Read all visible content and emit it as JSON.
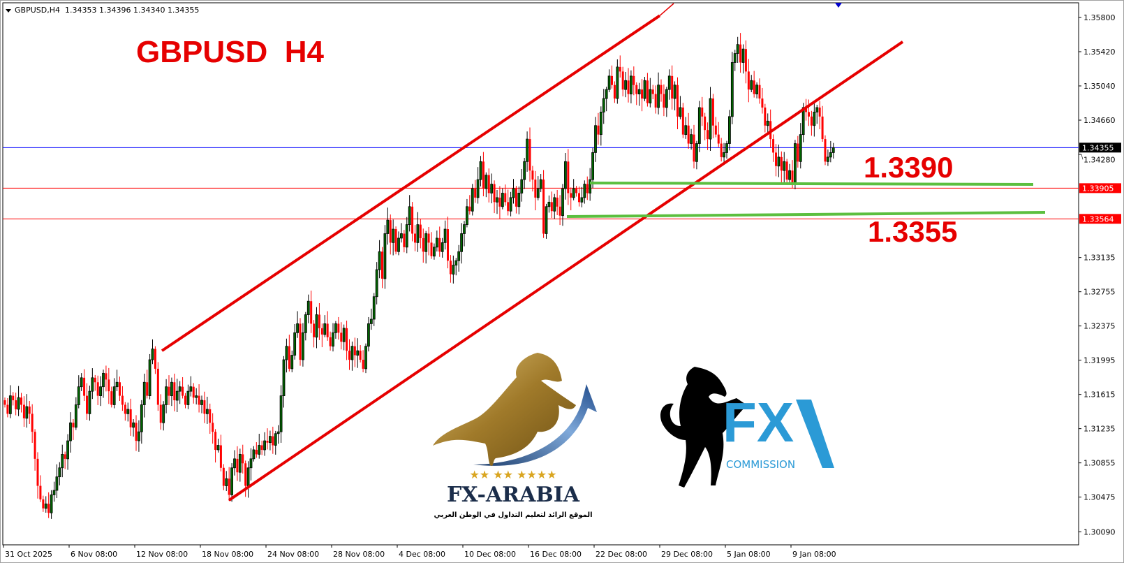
{
  "header": {
    "symbol": "GBPUSD,H4",
    "ohlc": "1.34353 1.34396 1.34340 1.34355"
  },
  "annotations": {
    "title": "GBPUSD  H4",
    "level_1_label": "1.3390",
    "level_2_label": "1.3355"
  },
  "logos": {
    "fx_arabia": {
      "name": "FX-ARABIA",
      "tagline": "الموقع الرائد لتعليم التداول في الوطن العربي"
    },
    "fx_commission": {
      "name": "FX",
      "sub": "COMMISSION"
    }
  },
  "colors": {
    "bull_body": "#006400",
    "bear_body": "#ff0000",
    "current_price_line": "#0000ff",
    "level_line": "#ff0000",
    "support_line": "#5cbf3f",
    "channel_line": "#e60000",
    "title": "#e60000"
  },
  "chart_data": {
    "type": "candlestick",
    "timeframe": "H4",
    "symbol": "GBPUSD",
    "ylim": [
      1.2995,
      1.36
    ],
    "y_ticks": [
      "1.35800",
      "1.35420",
      "1.35040",
      "1.34660",
      "1.34280",
      "1.33135",
      "1.32755",
      "1.32375",
      "1.31995",
      "1.31615",
      "1.31235",
      "1.30855",
      "1.30475",
      "1.30090"
    ],
    "x_ticks": [
      "31 Oct 2025",
      "6 Nov 08:00",
      "12 Nov 08:00",
      "18 Nov 08:00",
      "24 Nov 08:00",
      "28 Nov 08:00",
      "4 Dec 08:00",
      "10 Dec 08:00",
      "16 Dec 08:00",
      "22 Dec 08:00",
      "29 Dec 08:00",
      "5 Jan 08:00",
      "9 Jan 08:00"
    ],
    "closes": [
      1.315,
      1.314,
      1.316,
      1.3155,
      1.3145,
      1.3158,
      1.315,
      1.3135,
      1.3148,
      1.314,
      1.312,
      1.309,
      1.306,
      1.3045,
      1.3035,
      1.304,
      1.303,
      1.305,
      1.3055,
      1.307,
      1.308,
      1.3095,
      1.309,
      1.311,
      1.313,
      1.3125,
      1.315,
      1.317,
      1.318,
      1.316,
      1.314,
      1.3165,
      1.318,
      1.3175,
      1.316,
      1.317,
      1.3185,
      1.3178,
      1.3165,
      1.315,
      1.317,
      1.3175,
      1.316,
      1.315,
      1.314,
      1.3145,
      1.3125,
      1.313,
      1.311,
      1.312,
      1.315,
      1.3175,
      1.316,
      1.32,
      1.3212,
      1.319,
      1.315,
      1.313,
      1.315,
      1.317,
      1.316,
      1.3175,
      1.3155,
      1.3165,
      1.317,
      1.316,
      1.315,
      1.3165,
      1.317,
      1.3158,
      1.316,
      1.315,
      1.3155,
      1.314,
      1.3145,
      1.313,
      1.312,
      1.31,
      1.3105,
      1.308,
      1.306,
      1.3068,
      1.305,
      1.308,
      1.309,
      1.3075,
      1.3095,
      1.3085,
      1.306,
      1.308,
      1.309,
      1.31,
      1.3095,
      1.3105,
      1.31,
      1.311,
      1.3108,
      1.3115,
      1.3105,
      1.3118,
      1.312,
      1.316,
      1.32,
      1.3215,
      1.319,
      1.3205,
      1.323,
      1.324,
      1.32,
      1.323,
      1.325,
      1.3265,
      1.324,
      1.3225,
      1.325,
      1.3235,
      1.3228,
      1.324,
      1.3225,
      1.3215,
      1.323,
      1.324,
      1.323,
      1.322,
      1.3235,
      1.321,
      1.32,
      1.3215,
      1.3205,
      1.321,
      1.32,
      1.319,
      1.3215,
      1.324,
      1.3245,
      1.327,
      1.33,
      1.332,
      1.329,
      1.334,
      1.3355,
      1.333,
      1.3345,
      1.332,
      1.3335,
      1.334,
      1.3325,
      1.335,
      1.337,
      1.334,
      1.333,
      1.335,
      1.3335,
      1.332,
      1.334,
      1.333,
      1.3315,
      1.3325,
      1.3335,
      1.332,
      1.333,
      1.3345,
      1.331,
      1.3295,
      1.3305,
      1.331,
      1.332,
      1.334,
      1.335,
      1.337,
      1.3365,
      1.339,
      1.338,
      1.34,
      1.342,
      1.339,
      1.3405,
      1.3385,
      1.3395,
      1.3375,
      1.338,
      1.337,
      1.3385,
      1.3375,
      1.3365,
      1.338,
      1.339,
      1.337,
      1.3385,
      1.34,
      1.342,
      1.3445,
      1.341,
      1.34,
      1.338,
      1.339,
      1.34,
      1.334,
      1.337,
      1.3375,
      1.3365,
      1.338,
      1.337,
      1.336,
      1.339,
      1.342,
      1.3385,
      1.338,
      1.339,
      1.3385,
      1.3375,
      1.338,
      1.3395,
      1.3385,
      1.34,
      1.343,
      1.346,
      1.345,
      1.3475,
      1.349,
      1.35,
      1.3515,
      1.3505,
      1.349,
      1.3525,
      1.352,
      1.35,
      1.351,
      1.3495,
      1.3515,
      1.3505,
      1.3495,
      1.35,
      1.349,
      1.351,
      1.3485,
      1.35,
      1.3495,
      1.348,
      1.3505,
      1.3495,
      1.348,
      1.35,
      1.3515,
      1.349,
      1.3505,
      1.347,
      1.348,
      1.345,
      1.346,
      1.344,
      1.345,
      1.342,
      1.344,
      1.348,
      1.347,
      1.3455,
      1.3445,
      1.349,
      1.346,
      1.345,
      1.344,
      1.3425,
      1.343,
      1.344,
      1.347,
      1.353,
      1.354,
      1.355,
      1.353,
      1.3545,
      1.352,
      1.35,
      1.351,
      1.3495,
      1.3505,
      1.349,
      1.348,
      1.346,
      1.3465,
      1.3445,
      1.343,
      1.3415,
      1.3425,
      1.341,
      1.342,
      1.34,
      1.341,
      1.3395,
      1.344,
      1.342,
      1.345,
      1.348,
      1.3475,
      1.347,
      1.346,
      1.3475,
      1.348,
      1.347,
      1.3445,
      1.342,
      1.3425,
      1.343,
      1.34355
    ],
    "current_price": "1.34355",
    "horizontal_levels": [
      {
        "price": "1.33905",
        "color": "#ff0000"
      },
      {
        "price": "1.33564",
        "color": "#ff0000"
      }
    ],
    "support_lines": [
      1.339,
      1.3355
    ],
    "channel": {
      "upper": {
        "start_price": 1.321,
        "end_price": 1.3582
      },
      "lower": {
        "start_price": 1.3044,
        "end_price": 1.3553
      }
    },
    "grid": false
  }
}
